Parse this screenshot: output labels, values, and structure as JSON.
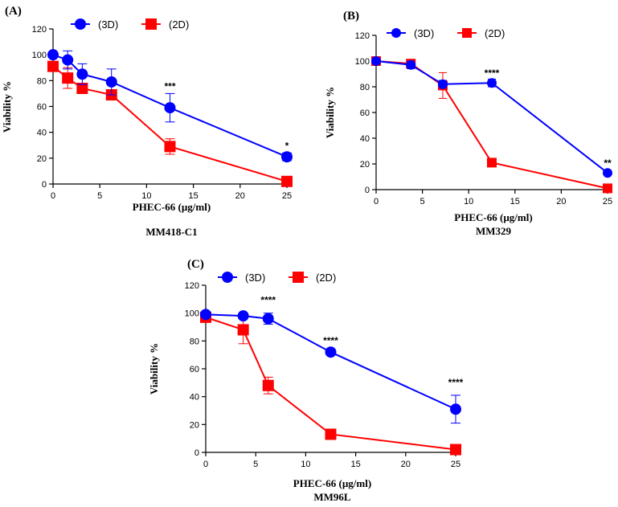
{
  "chart_data": [
    {
      "type": "line",
      "panel_label": "(A)",
      "title": "MM418-C1",
      "xlabel": "PHEC-66 (µg/ml)",
      "ylabel": "Viability %",
      "xlim": [
        0,
        25
      ],
      "ylim": [
        0,
        120
      ],
      "xticks": [
        0,
        5,
        10,
        15,
        20,
        25
      ],
      "yticks": [
        0,
        20,
        40,
        60,
        80,
        100,
        120
      ],
      "grid": false,
      "legend_position": "top",
      "x": [
        0,
        1.5625,
        3.125,
        6.25,
        12.5,
        25
      ],
      "series": [
        {
          "name": "(3D)",
          "color": "#0000ff",
          "marker": "circle",
          "values": [
            100,
            96,
            85,
            79,
            59,
            21
          ],
          "errors": [
            0,
            7,
            8,
            10,
            11,
            3
          ]
        },
        {
          "name": "(2D)",
          "color": "#ff0000",
          "marker": "square",
          "values": [
            91,
            82,
            74,
            69,
            29,
            2
          ],
          "errors": [
            0,
            8,
            4,
            4,
            6,
            0
          ]
        }
      ],
      "annotations": [
        {
          "x": 12.5,
          "y": 73,
          "text": "***"
        },
        {
          "x": 25,
          "y": 27,
          "text": "*"
        }
      ]
    },
    {
      "type": "line",
      "panel_label": "(B)",
      "title": "MM329",
      "xlabel": "PHEC-66 (µg/ml)",
      "ylabel": "Viability %",
      "xlim": [
        0,
        25
      ],
      "ylim": [
        0,
        120
      ],
      "xticks": [
        0,
        5,
        10,
        15,
        20,
        25
      ],
      "yticks": [
        0,
        20,
        40,
        60,
        80,
        100,
        120
      ],
      "grid": false,
      "legend_position": "top",
      "x": [
        0,
        3.75,
        7.2,
        12.5,
        25
      ],
      "series": [
        {
          "name": "(3D)",
          "color": "#0000ff",
          "marker": "circle",
          "values": [
            100,
            97,
            82,
            83,
            13
          ],
          "errors": [
            0,
            3,
            3,
            3,
            1
          ]
        },
        {
          "name": "(2D)",
          "color": "#ff0000",
          "marker": "square",
          "values": [
            100,
            98,
            81,
            21,
            1
          ],
          "errors": [
            0,
            2,
            10,
            0,
            0
          ]
        }
      ],
      "annotations": [
        {
          "x": 12.5,
          "y": 88,
          "text": "****"
        },
        {
          "x": 25,
          "y": 18,
          "text": "**"
        }
      ]
    },
    {
      "type": "line",
      "panel_label": "(C)",
      "title": "MM96L",
      "xlabel": "PHEC-66 (µg/ml)",
      "ylabel": "Viability %",
      "xlim": [
        0,
        25
      ],
      "ylim": [
        0,
        120
      ],
      "xticks": [
        0,
        5,
        10,
        15,
        20,
        25
      ],
      "yticks": [
        0,
        20,
        40,
        60,
        80,
        100,
        120
      ],
      "grid": false,
      "legend_position": "top",
      "x": [
        0,
        3.75,
        6.25,
        12.5,
        25
      ],
      "series": [
        {
          "name": "(3D)",
          "color": "#0000ff",
          "marker": "circle",
          "values": [
            99,
            98,
            96,
            72,
            31
          ],
          "errors": [
            0,
            0,
            4,
            0,
            10
          ]
        },
        {
          "name": "(2D)",
          "color": "#ff0000",
          "marker": "square",
          "values": [
            97,
            88,
            48,
            13,
            2
          ],
          "errors": [
            0,
            10,
            6,
            0,
            0
          ]
        }
      ],
      "annotations": [
        {
          "x": 6.25,
          "y": 107,
          "text": "****"
        },
        {
          "x": 12.5,
          "y": 78,
          "text": "****"
        },
        {
          "x": 25,
          "y": 48,
          "text": "****"
        }
      ]
    }
  ]
}
